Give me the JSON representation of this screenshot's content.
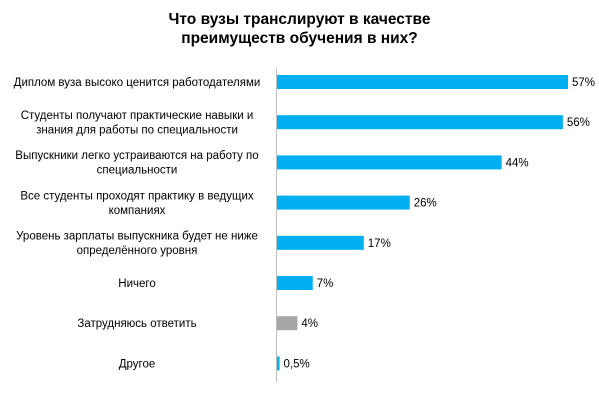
{
  "chart_data": {
    "type": "bar",
    "orientation": "horizontal",
    "title_lines": [
      "Что вузы транслируют в качестве",
      "преимуществ обучения в них?"
    ],
    "categories": [
      [
        "Диплом вуза высоко ценится работодателями"
      ],
      [
        "Студенты получают практические навыки и",
        "знания для работы по специальности"
      ],
      [
        "Выпускники легко устраиваются на работу по",
        "специальности"
      ],
      [
        "Все студенты проходят практику в ведущих",
        "компаниях"
      ],
      [
        "Уровень зарплаты выпускника будет не ниже",
        "определённого уровня"
      ],
      [
        "Ничего"
      ],
      [
        "Затрудняюсь ответить"
      ],
      [
        "Другое"
      ]
    ],
    "values": [
      57,
      56,
      44,
      26,
      17,
      7,
      4,
      0.5
    ],
    "value_labels": [
      "57%",
      "56%",
      "44%",
      "26%",
      "17%",
      "7%",
      "4%",
      "0,5%"
    ],
    "bar_colors": [
      "#00B0F0",
      "#00B0F0",
      "#00B0F0",
      "#00B0F0",
      "#00B0F0",
      "#00B0F0",
      "#A6A6A6",
      "#00B0F0"
    ],
    "xlim": [
      0,
      57
    ],
    "axis_color": "#BFBFBF",
    "grid": false,
    "legend": "none"
  }
}
